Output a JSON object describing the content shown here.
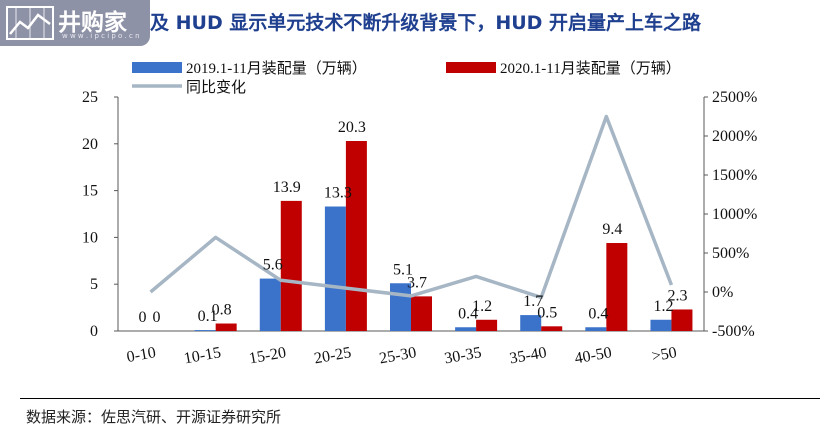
{
  "header": {
    "title": "及 HUD 显示单元技术不断升级背景下，HUD 开启量产上车之路",
    "logo_text": "井购家",
    "logo_url": "w w w . i p c i p o . c n"
  },
  "footer": {
    "source": "数据来源：佐思汽研、开源证券研究所"
  },
  "colors": {
    "series1": "#3a73c9",
    "series2": "#c00000",
    "line": "#a6b6c4"
  },
  "chart_data": {
    "type": "bar",
    "categories": [
      "0-10",
      "10-15",
      "15-20",
      "20-25",
      "25-30",
      "30-35",
      "35-40",
      "40-50",
      ">50"
    ],
    "series": [
      {
        "name": "2019.1-11月装配量（万辆）",
        "values": [
          0,
          0.1,
          5.6,
          13.3,
          5.1,
          0.4,
          1.7,
          0.4,
          1.2
        ],
        "labels": [
          "0",
          "0.1",
          "5.6",
          "13.3",
          "5.1",
          "0.4",
          "1.7",
          "0.4",
          "1.2"
        ]
      },
      {
        "name": "2020.1-11月装配量（万辆）",
        "values": [
          0,
          0.8,
          13.9,
          20.3,
          3.7,
          1.2,
          0.5,
          9.4,
          2.3
        ],
        "labels": [
          "0",
          "0.8",
          "13.9",
          "20.3",
          "3.7",
          "1.2",
          "0.5",
          "9.4",
          "2.3"
        ]
      }
    ],
    "line_series": {
      "name": "同比变化",
      "values": [
        0,
        700,
        150,
        50,
        -50,
        200,
        -70,
        2250,
        90
      ]
    },
    "ylim": [
      0,
      25
    ],
    "yticks": [
      "0",
      "5",
      "10",
      "15",
      "20",
      "25"
    ],
    "y2lim": [
      -500,
      2500
    ],
    "y2ticks": [
      "-500%",
      "0%",
      "500%",
      "1000%",
      "1500%",
      "2000%",
      "2500%"
    ],
    "legend_position": "top"
  }
}
